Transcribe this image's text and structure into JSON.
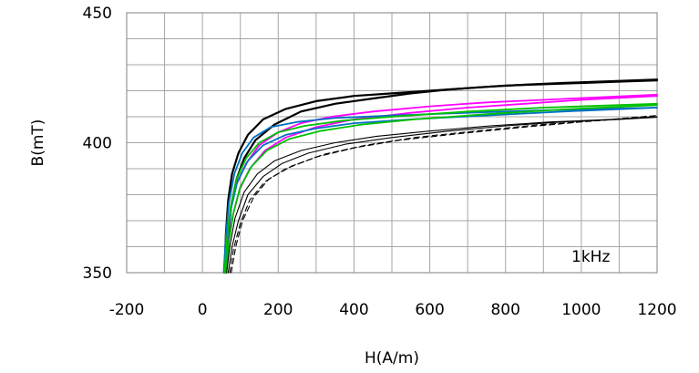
{
  "chart_data": {
    "type": "line",
    "xlabel": "H(A/m)",
    "ylabel": "B(mT)",
    "xlim": [
      -200,
      1200
    ],
    "ylim": [
      350,
      450
    ],
    "x_ticks": [
      "-200",
      "0",
      "200",
      "400",
      "600",
      "800",
      "1000",
      "1200"
    ],
    "y_ticks": [
      "350",
      "400",
      "450"
    ],
    "x_minor_step": 100,
    "y_minor_step": 10,
    "grid": true,
    "annotation": "1kHz",
    "series": [
      {
        "color": "#000000",
        "dash": "",
        "width": 2.2,
        "points": [
          [
            58,
            350
          ],
          [
            62,
            365
          ],
          [
            68,
            378
          ],
          [
            78,
            388
          ],
          [
            95,
            396
          ],
          [
            120,
            403
          ],
          [
            160,
            409
          ],
          [
            220,
            413
          ],
          [
            300,
            416
          ],
          [
            400,
            418
          ],
          [
            500,
            419
          ],
          [
            600,
            420
          ],
          [
            700,
            421
          ],
          [
            800,
            422
          ],
          [
            900,
            422.5
          ],
          [
            1000,
            423
          ],
          [
            1100,
            423.5
          ],
          [
            1200,
            424
          ]
        ]
      },
      {
        "color": "#000000",
        "dash": "",
        "width": 2.2,
        "points": [
          [
            62,
            350
          ],
          [
            68,
            364
          ],
          [
            76,
            376
          ],
          [
            90,
            386
          ],
          [
            110,
            394
          ],
          [
            140,
            401
          ],
          [
            190,
            407
          ],
          [
            260,
            412
          ],
          [
            350,
            415
          ],
          [
            450,
            417
          ],
          [
            550,
            419
          ],
          [
            650,
            420.5
          ],
          [
            750,
            421.5
          ],
          [
            850,
            422.3
          ],
          [
            950,
            423
          ],
          [
            1050,
            423.5
          ],
          [
            1200,
            424.3
          ]
        ]
      },
      {
        "color": "#ff00ff",
        "dash": "",
        "width": 1.8,
        "points": [
          [
            58,
            350
          ],
          [
            64,
            362
          ],
          [
            74,
            374
          ],
          [
            90,
            384
          ],
          [
            115,
            392
          ],
          [
            150,
            399
          ],
          [
            200,
            404
          ],
          [
            260,
            407.5
          ],
          [
            340,
            410
          ],
          [
            450,
            412
          ],
          [
            600,
            414
          ],
          [
            750,
            415.5
          ],
          [
            900,
            416.5
          ],
          [
            1050,
            417.5
          ],
          [
            1200,
            418.5
          ]
        ]
      },
      {
        "color": "#ff00ff",
        "dash": "",
        "width": 1.8,
        "points": [
          [
            60,
            350
          ],
          [
            68,
            361
          ],
          [
            80,
            372
          ],
          [
            98,
            382
          ],
          [
            125,
            390
          ],
          [
            165,
            397
          ],
          [
            220,
            402
          ],
          [
            300,
            406
          ],
          [
            400,
            409
          ],
          [
            550,
            411.5
          ],
          [
            700,
            413.5
          ],
          [
            850,
            415
          ],
          [
            1000,
            416.5
          ],
          [
            1200,
            418
          ]
        ]
      },
      {
        "color": "#0070c0",
        "dash": "",
        "width": 1.8,
        "points": [
          [
            56,
            350
          ],
          [
            62,
            364
          ],
          [
            70,
            377
          ],
          [
            84,
            388
          ],
          [
            105,
            396
          ],
          [
            135,
            402
          ],
          [
            180,
            406
          ],
          [
            250,
            408
          ],
          [
            350,
            409.5
          ],
          [
            500,
            410.5
          ],
          [
            700,
            411.5
          ],
          [
            900,
            412.5
          ],
          [
            1200,
            413.5
          ]
        ]
      },
      {
        "color": "#0070c0",
        "dash": "",
        "width": 1.8,
        "points": [
          [
            60,
            350
          ],
          [
            66,
            363
          ],
          [
            76,
            375
          ],
          [
            92,
            385
          ],
          [
            120,
            393
          ],
          [
            160,
            399
          ],
          [
            220,
            403
          ],
          [
            300,
            405.5
          ],
          [
            400,
            407.5
          ],
          [
            550,
            409
          ],
          [
            750,
            410.5
          ],
          [
            950,
            412
          ],
          [
            1200,
            413.5
          ]
        ]
      },
      {
        "color": "#00c000",
        "dash": "",
        "width": 1.8,
        "points": [
          [
            58,
            350
          ],
          [
            64,
            362
          ],
          [
            74,
            375
          ],
          [
            90,
            386
          ],
          [
            115,
            394
          ],
          [
            150,
            400
          ],
          [
            200,
            404
          ],
          [
            270,
            406.5
          ],
          [
            370,
            408.5
          ],
          [
            500,
            410
          ],
          [
            700,
            412
          ],
          [
            900,
            413.5
          ],
          [
            1200,
            415
          ]
        ]
      },
      {
        "color": "#00c000",
        "dash": "",
        "width": 1.8,
        "points": [
          [
            62,
            350
          ],
          [
            70,
            362
          ],
          [
            82,
            373
          ],
          [
            100,
            383
          ],
          [
            130,
            391
          ],
          [
            170,
            397
          ],
          [
            230,
            401.5
          ],
          [
            310,
            404.5
          ],
          [
            420,
            407
          ],
          [
            560,
            409
          ],
          [
            750,
            411
          ],
          [
            950,
            412.8
          ],
          [
            1200,
            414.5
          ]
        ]
      },
      {
        "color": "#000000",
        "dash": "",
        "width": 1.1,
        "points": [
          [
            64,
            350
          ],
          [
            72,
            360
          ],
          [
            86,
            371
          ],
          [
            110,
            381
          ],
          [
            145,
            388
          ],
          [
            190,
            393
          ],
          [
            260,
            397
          ],
          [
            350,
            400
          ],
          [
            460,
            402.5
          ],
          [
            600,
            404.5
          ],
          [
            760,
            406.5
          ],
          [
            920,
            408
          ],
          [
            1080,
            409
          ],
          [
            1200,
            410
          ]
        ]
      },
      {
        "color": "#000000",
        "dash": "",
        "width": 1.1,
        "points": [
          [
            68,
            350
          ],
          [
            78,
            360
          ],
          [
            95,
            370
          ],
          [
            120,
            380
          ],
          [
            160,
            387
          ],
          [
            210,
            392
          ],
          [
            280,
            396
          ],
          [
            380,
            399.5
          ],
          [
            500,
            402
          ],
          [
            650,
            404.5
          ],
          [
            800,
            406.5
          ],
          [
            950,
            408
          ],
          [
            1100,
            409
          ],
          [
            1200,
            409.8
          ]
        ]
      },
      {
        "color": "#000000",
        "dash": "6,4",
        "width": 1.1,
        "points": [
          [
            72,
            350
          ],
          [
            82,
            359
          ],
          [
            100,
            369
          ],
          [
            125,
            378
          ],
          [
            165,
            385
          ],
          [
            220,
            390
          ],
          [
            300,
            394.5
          ],
          [
            400,
            398
          ],
          [
            520,
            401
          ],
          [
            680,
            403.5
          ],
          [
            850,
            406
          ],
          [
            1000,
            408
          ],
          [
            1200,
            410.2
          ]
        ]
      },
      {
        "color": "#000000",
        "dash": "6,4",
        "width": 1.1,
        "points": [
          [
            76,
            350
          ],
          [
            88,
            360
          ],
          [
            106,
            370
          ],
          [
            135,
            379
          ],
          [
            175,
            386
          ],
          [
            235,
            391
          ],
          [
            320,
            395.5
          ],
          [
            430,
            399
          ],
          [
            560,
            402
          ],
          [
            720,
            404.5
          ],
          [
            880,
            406.8
          ],
          [
            1040,
            408.5
          ],
          [
            1200,
            410.5
          ]
        ]
      }
    ]
  }
}
